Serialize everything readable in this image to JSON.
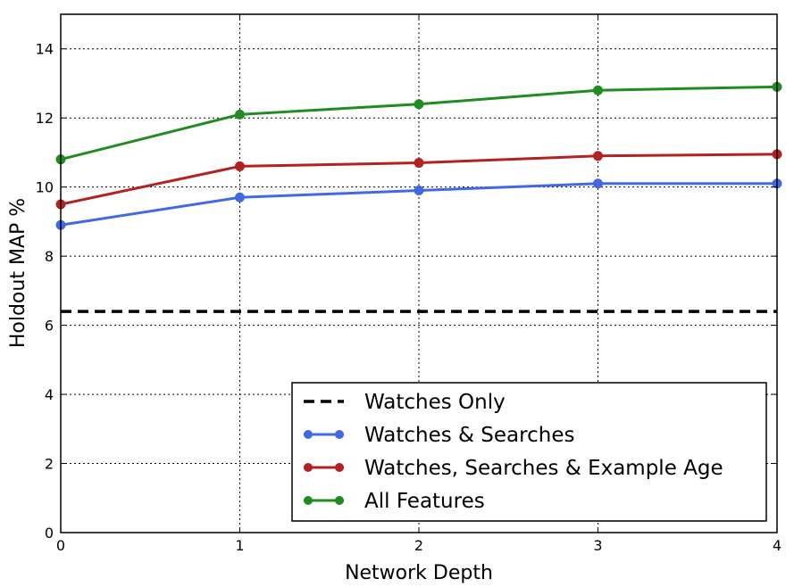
{
  "chart_data": {
    "type": "line",
    "xlabel": "Network Depth",
    "ylabel": "Holdout MAP %",
    "xlim": [
      0,
      4
    ],
    "ylim": [
      0,
      15
    ],
    "x": [
      0,
      1,
      2,
      3,
      4
    ],
    "xticks": [
      0,
      1,
      2,
      3,
      4
    ],
    "yticks": [
      0,
      2,
      4,
      6,
      8,
      10,
      12,
      14
    ],
    "grid": true,
    "legend_position": "lower-right",
    "series": [
      {
        "name": "Watches Only",
        "color": "#000000",
        "style": "dashed",
        "markers": false,
        "values": [
          6.4,
          6.4,
          6.4,
          6.4,
          6.4
        ]
      },
      {
        "name": "Watches & Searches",
        "color": "#4169e1",
        "style": "solid",
        "markers": true,
        "values": [
          8.9,
          9.7,
          9.9,
          10.1,
          10.1
        ]
      },
      {
        "name": "Watches, Searches & Example Age",
        "color": "#b22222",
        "style": "solid",
        "markers": true,
        "values": [
          9.5,
          10.6,
          10.7,
          10.9,
          10.95
        ]
      },
      {
        "name": "All Features",
        "color": "#228b22",
        "style": "solid",
        "markers": true,
        "values": [
          10.8,
          12.1,
          12.4,
          12.8,
          12.9
        ]
      }
    ]
  }
}
